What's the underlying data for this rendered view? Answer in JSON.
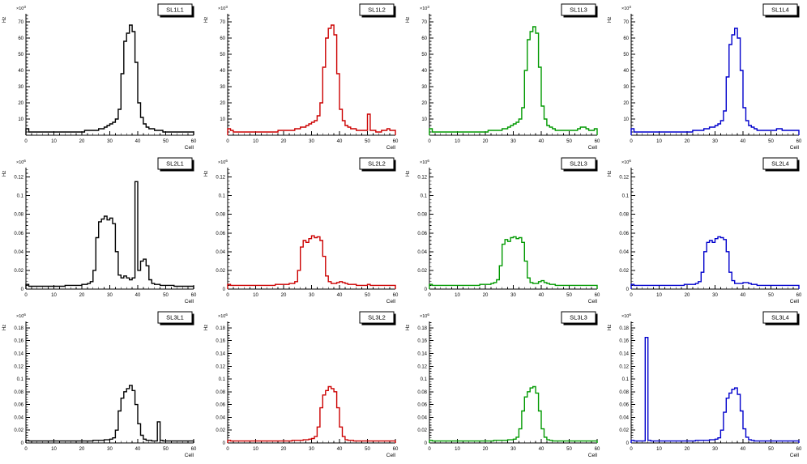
{
  "page": {
    "background": "#ffffff"
  },
  "chart_data": [
    {
      "type": "histogram",
      "title": "SL1L1",
      "color": "#000000",
      "xlabel": "Cell",
      "ylabel": "Hz",
      "exponent": "3",
      "x_range": [
        0,
        60
      ],
      "x_ticks": [
        0,
        10,
        20,
        30,
        40,
        50,
        60
      ],
      "x_tick_labels": [
        "0",
        "10",
        "20",
        "30",
        "40",
        "50",
        "60"
      ],
      "x_minor_step": 2,
      "y_max": 75,
      "y_ticks": [
        10,
        20,
        30,
        40,
        50,
        60,
        70
      ],
      "y_tick_labels": [
        "10",
        "20",
        "30",
        "40",
        "50",
        "60",
        "70"
      ],
      "y_minor_step": 2,
      "values": [
        4,
        2,
        2,
        2,
        2,
        2,
        2,
        2,
        2,
        2,
        2,
        2,
        2,
        2,
        2,
        2,
        2,
        2,
        2,
        2,
        2,
        3,
        3,
        3,
        3,
        3,
        4,
        4,
        5,
        6,
        7,
        8,
        10,
        16,
        38,
        58,
        63,
        68,
        64,
        45,
        20,
        11,
        7,
        5,
        4,
        4,
        3,
        3,
        3,
        2,
        2,
        2,
        2,
        2,
        2,
        2,
        2,
        2,
        2,
        2
      ]
    },
    {
      "type": "histogram",
      "title": "SL1L2",
      "color": "#cc0000",
      "xlabel": "Cell",
      "ylabel": "Hz",
      "exponent": "3",
      "x_range": [
        0,
        60
      ],
      "x_ticks": [
        0,
        10,
        20,
        30,
        40,
        50,
        60
      ],
      "x_tick_labels": [
        "0",
        "10",
        "20",
        "30",
        "40",
        "50",
        "60"
      ],
      "x_minor_step": 2,
      "y_max": 75,
      "y_ticks": [
        10,
        20,
        30,
        40,
        50,
        60,
        70
      ],
      "y_tick_labels": [
        "10",
        "20",
        "30",
        "40",
        "50",
        "60",
        "70"
      ],
      "y_minor_step": 2,
      "values": [
        4,
        3,
        2,
        2,
        2,
        2,
        2,
        2,
        2,
        2,
        2,
        2,
        2,
        2,
        2,
        2,
        2,
        2,
        3,
        3,
        3,
        3,
        3,
        3,
        4,
        4,
        5,
        5,
        6,
        7,
        8,
        9,
        12,
        20,
        42,
        60,
        66,
        68,
        62,
        38,
        16,
        9,
        6,
        5,
        4,
        4,
        3,
        3,
        3,
        3,
        13,
        3,
        3,
        2,
        2,
        3,
        3,
        4,
        3,
        3
      ]
    },
    {
      "type": "histogram",
      "title": "SL1L3",
      "color": "#009900",
      "xlabel": "Cell",
      "ylabel": "Hz",
      "exponent": "3",
      "x_range": [
        0,
        60
      ],
      "x_ticks": [
        0,
        10,
        20,
        30,
        40,
        50,
        60
      ],
      "x_tick_labels": [
        "0",
        "10",
        "20",
        "30",
        "40",
        "50",
        "60"
      ],
      "x_minor_step": 2,
      "y_max": 75,
      "y_ticks": [
        10,
        20,
        30,
        40,
        50,
        60,
        70
      ],
      "y_tick_labels": [
        "10",
        "20",
        "30",
        "40",
        "50",
        "60",
        "70"
      ],
      "y_minor_step": 2,
      "values": [
        4,
        2,
        2,
        2,
        2,
        2,
        2,
        2,
        2,
        2,
        2,
        2,
        2,
        2,
        2,
        2,
        2,
        2,
        2,
        2,
        2,
        3,
        3,
        3,
        3,
        3,
        4,
        4,
        5,
        6,
        7,
        8,
        10,
        17,
        40,
        59,
        64,
        67,
        63,
        42,
        18,
        10,
        6,
        5,
        4,
        3,
        3,
        3,
        3,
        3,
        3,
        3,
        3,
        4,
        5,
        5,
        4,
        3,
        3,
        4
      ]
    },
    {
      "type": "histogram",
      "title": "SL1L4",
      "color": "#0000cc",
      "xlabel": "Cell",
      "ylabel": "Hz",
      "exponent": "3",
      "x_range": [
        0,
        60
      ],
      "x_ticks": [
        0,
        10,
        20,
        30,
        40,
        50,
        60
      ],
      "x_tick_labels": [
        "0",
        "10",
        "20",
        "30",
        "40",
        "50",
        "60"
      ],
      "x_minor_step": 2,
      "y_max": 75,
      "y_ticks": [
        10,
        20,
        30,
        40,
        50,
        60,
        70
      ],
      "y_tick_labels": [
        "10",
        "20",
        "30",
        "40",
        "50",
        "60",
        "70"
      ],
      "y_minor_step": 2,
      "values": [
        4,
        2,
        2,
        2,
        2,
        2,
        2,
        2,
        2,
        2,
        2,
        2,
        2,
        2,
        2,
        2,
        2,
        2,
        2,
        2,
        2,
        2,
        3,
        3,
        3,
        3,
        4,
        4,
        5,
        5,
        6,
        7,
        9,
        15,
        36,
        56,
        62,
        66,
        60,
        40,
        17,
        9,
        6,
        5,
        4,
        3,
        3,
        3,
        3,
        3,
        3,
        3,
        4,
        4,
        3,
        3,
        3,
        3,
        3,
        3
      ]
    },
    {
      "type": "histogram",
      "title": "SL2L1",
      "color": "#000000",
      "xlabel": "Cell",
      "ylabel": "Hz",
      "exponent": "6",
      "x_range": [
        0,
        60
      ],
      "x_ticks": [
        0,
        10,
        20,
        30,
        40,
        50,
        60
      ],
      "x_tick_labels": [
        "0",
        "10",
        "20",
        "30",
        "40",
        "50",
        "60"
      ],
      "x_minor_step": 2,
      "y_max": 0.13,
      "y_ticks": [
        0,
        0.02,
        0.04,
        0.06,
        0.08,
        0.1,
        0.12
      ],
      "y_tick_labels": [
        "0",
        "0.02",
        "0.04",
        "0.06",
        "0.08",
        "0.1",
        "0.12"
      ],
      "y_minor_step": 0.004,
      "values": [
        0.005,
        0.003,
        0.003,
        0.003,
        0.003,
        0.003,
        0.003,
        0.003,
        0.003,
        0.003,
        0.003,
        0.003,
        0.003,
        0.003,
        0.004,
        0.004,
        0.004,
        0.004,
        0.004,
        0.004,
        0.005,
        0.005,
        0.006,
        0.008,
        0.02,
        0.055,
        0.072,
        0.075,
        0.078,
        0.074,
        0.076,
        0.07,
        0.04,
        0.015,
        0.012,
        0.014,
        0.012,
        0.01,
        0.012,
        0.115,
        0.02,
        0.03,
        0.032,
        0.025,
        0.01,
        0.006,
        0.005,
        0.005,
        0.004,
        0.004,
        0.004,
        0.004,
        0.004,
        0.003,
        0.003,
        0.003,
        0.003,
        0.003,
        0.003,
        0.003
      ]
    },
    {
      "type": "histogram",
      "title": "SL2L2",
      "color": "#cc0000",
      "xlabel": "Cell",
      "ylabel": "Hz",
      "exponent": "6",
      "x_range": [
        0,
        60
      ],
      "x_ticks": [
        0,
        10,
        20,
        30,
        40,
        50,
        60
      ],
      "x_tick_labels": [
        "0",
        "10",
        "20",
        "30",
        "40",
        "50",
        "60"
      ],
      "x_minor_step": 2,
      "y_max": 0.13,
      "y_ticks": [
        0,
        0.02,
        0.04,
        0.06,
        0.08,
        0.1,
        0.12
      ],
      "y_tick_labels": [
        "0",
        "0.02",
        "0.04",
        "0.06",
        "0.08",
        "0.1",
        "0.12"
      ],
      "y_minor_step": 0.004,
      "values": [
        0.005,
        0.004,
        0.004,
        0.004,
        0.004,
        0.004,
        0.004,
        0.004,
        0.004,
        0.004,
        0.004,
        0.004,
        0.004,
        0.004,
        0.004,
        0.004,
        0.004,
        0.005,
        0.005,
        0.005,
        0.005,
        0.005,
        0.006,
        0.006,
        0.008,
        0.02,
        0.045,
        0.052,
        0.05,
        0.054,
        0.057,
        0.055,
        0.056,
        0.052,
        0.035,
        0.014,
        0.008,
        0.006,
        0.006,
        0.007,
        0.008,
        0.007,
        0.006,
        0.005,
        0.005,
        0.005,
        0.004,
        0.004,
        0.004,
        0.004,
        0.005,
        0.004,
        0.004,
        0.004,
        0.004,
        0.004,
        0.004,
        0.004,
        0.004,
        0.004
      ]
    },
    {
      "type": "histogram",
      "title": "SL2L3",
      "color": "#009900",
      "xlabel": "Cell",
      "ylabel": "Hz",
      "exponent": "6",
      "x_range": [
        0,
        60
      ],
      "x_ticks": [
        0,
        10,
        20,
        30,
        40,
        50,
        60
      ],
      "x_tick_labels": [
        "0",
        "10",
        "20",
        "30",
        "40",
        "50",
        "60"
      ],
      "x_minor_step": 2,
      "y_max": 0.13,
      "y_ticks": [
        0,
        0.02,
        0.04,
        0.06,
        0.08,
        0.1,
        0.12
      ],
      "y_tick_labels": [
        "0",
        "0.02",
        "0.04",
        "0.06",
        "0.08",
        "0.1",
        "0.12"
      ],
      "y_minor_step": 0.004,
      "values": [
        0.005,
        0.004,
        0.004,
        0.004,
        0.004,
        0.004,
        0.004,
        0.004,
        0.004,
        0.004,
        0.004,
        0.004,
        0.004,
        0.004,
        0.004,
        0.004,
        0.004,
        0.004,
        0.005,
        0.005,
        0.005,
        0.005,
        0.006,
        0.007,
        0.01,
        0.025,
        0.048,
        0.053,
        0.051,
        0.055,
        0.056,
        0.054,
        0.055,
        0.05,
        0.03,
        0.012,
        0.007,
        0.006,
        0.006,
        0.008,
        0.009,
        0.007,
        0.006,
        0.005,
        0.005,
        0.004,
        0.004,
        0.004,
        0.004,
        0.004,
        0.004,
        0.004,
        0.004,
        0.004,
        0.004,
        0.004,
        0.004,
        0.004,
        0.004,
        0.004
      ]
    },
    {
      "type": "histogram",
      "title": "SL2L4",
      "color": "#0000cc",
      "xlabel": "Cell",
      "ylabel": "Hz",
      "exponent": "6",
      "x_range": [
        0,
        60
      ],
      "x_ticks": [
        0,
        10,
        20,
        30,
        40,
        50,
        60
      ],
      "x_tick_labels": [
        "0",
        "10",
        "20",
        "30",
        "40",
        "50",
        "60"
      ],
      "x_minor_step": 2,
      "y_max": 0.13,
      "y_ticks": [
        0,
        0.02,
        0.04,
        0.06,
        0.08,
        0.1,
        0.12
      ],
      "y_tick_labels": [
        "0",
        "0.02",
        "0.04",
        "0.06",
        "0.08",
        "0.1",
        "0.12"
      ],
      "y_minor_step": 0.004,
      "values": [
        0.005,
        0.004,
        0.004,
        0.004,
        0.004,
        0.004,
        0.004,
        0.004,
        0.004,
        0.004,
        0.004,
        0.004,
        0.004,
        0.004,
        0.004,
        0.004,
        0.004,
        0.004,
        0.004,
        0.005,
        0.005,
        0.005,
        0.005,
        0.006,
        0.008,
        0.018,
        0.04,
        0.05,
        0.052,
        0.05,
        0.054,
        0.056,
        0.055,
        0.053,
        0.04,
        0.018,
        0.009,
        0.006,
        0.006,
        0.006,
        0.007,
        0.007,
        0.006,
        0.005,
        0.005,
        0.004,
        0.004,
        0.004,
        0.004,
        0.004,
        0.004,
        0.004,
        0.004,
        0.004,
        0.004,
        0.004,
        0.004,
        0.004,
        0.004,
        0.004
      ]
    },
    {
      "type": "histogram",
      "title": "SL3L1",
      "color": "#000000",
      "xlabel": "Cell",
      "ylabel": "Hz",
      "exponent": "6",
      "x_range": [
        0,
        60
      ],
      "x_ticks": [
        0,
        10,
        20,
        30,
        40,
        50,
        60
      ],
      "x_tick_labels": [
        "0",
        "10",
        "20",
        "30",
        "40",
        "50",
        "60"
      ],
      "x_minor_step": 2,
      "y_max": 0.19,
      "y_ticks": [
        0,
        0.02,
        0.04,
        0.06,
        0.08,
        0.1,
        0.12,
        0.14,
        0.16,
        0.18
      ],
      "y_tick_labels": [
        "0",
        "0.02",
        "0.04",
        "0.06",
        "0.08",
        "0.1",
        "0.12",
        "0.14",
        "0.16",
        "0.18"
      ],
      "y_minor_step": 0.004,
      "values": [
        0.004,
        0.003,
        0.003,
        0.003,
        0.003,
        0.003,
        0.003,
        0.003,
        0.003,
        0.003,
        0.003,
        0.003,
        0.003,
        0.003,
        0.003,
        0.003,
        0.003,
        0.003,
        0.003,
        0.003,
        0.003,
        0.003,
        0.003,
        0.003,
        0.004,
        0.004,
        0.004,
        0.004,
        0.005,
        0.005,
        0.006,
        0.008,
        0.02,
        0.05,
        0.07,
        0.08,
        0.085,
        0.09,
        0.082,
        0.06,
        0.03,
        0.012,
        0.006,
        0.004,
        0.004,
        0.003,
        0.003,
        0.033,
        0.004,
        0.003,
        0.003,
        0.003,
        0.003,
        0.003,
        0.003,
        0.003,
        0.003,
        0.003,
        0.003,
        0.003
      ]
    },
    {
      "type": "histogram",
      "title": "SL3L2",
      "color": "#cc0000",
      "xlabel": "Cell",
      "ylabel": "Hz",
      "exponent": "6",
      "x_range": [
        0,
        60
      ],
      "x_ticks": [
        0,
        10,
        20,
        30,
        40,
        50,
        60
      ],
      "x_tick_labels": [
        "0",
        "10",
        "20",
        "30",
        "40",
        "50",
        "60"
      ],
      "x_minor_step": 2,
      "y_max": 0.19,
      "y_ticks": [
        0,
        0.02,
        0.04,
        0.06,
        0.08,
        0.1,
        0.12,
        0.14,
        0.16,
        0.18
      ],
      "y_tick_labels": [
        "0",
        "0.02",
        "0.04",
        "0.06",
        "0.08",
        "0.1",
        "0.12",
        "0.14",
        "0.16",
        "0.18"
      ],
      "y_minor_step": 0.004,
      "values": [
        0.004,
        0.003,
        0.003,
        0.003,
        0.003,
        0.003,
        0.003,
        0.003,
        0.003,
        0.003,
        0.003,
        0.003,
        0.003,
        0.003,
        0.003,
        0.003,
        0.003,
        0.003,
        0.003,
        0.003,
        0.003,
        0.003,
        0.003,
        0.004,
        0.004,
        0.004,
        0.004,
        0.005,
        0.005,
        0.006,
        0.007,
        0.01,
        0.025,
        0.055,
        0.075,
        0.082,
        0.088,
        0.085,
        0.08,
        0.055,
        0.025,
        0.01,
        0.005,
        0.004,
        0.004,
        0.003,
        0.003,
        0.003,
        0.003,
        0.003,
        0.003,
        0.003,
        0.003,
        0.003,
        0.003,
        0.003,
        0.003,
        0.003,
        0.003,
        0.003
      ]
    },
    {
      "type": "histogram",
      "title": "SL3L3",
      "color": "#009900",
      "xlabel": "Cell",
      "ylabel": "Hz",
      "exponent": "6",
      "x_range": [
        0,
        60
      ],
      "x_ticks": [
        0,
        10,
        20,
        30,
        40,
        50,
        60
      ],
      "x_tick_labels": [
        "0",
        "10",
        "20",
        "30",
        "40",
        "50",
        "60"
      ],
      "x_minor_step": 2,
      "y_max": 0.19,
      "y_ticks": [
        0,
        0.02,
        0.04,
        0.06,
        0.08,
        0.1,
        0.12,
        0.14,
        0.16,
        0.18
      ],
      "y_tick_labels": [
        "0",
        "0.02",
        "0.04",
        "0.06",
        "0.08",
        "0.1",
        "0.12",
        "0.14",
        "0.16",
        "0.18"
      ],
      "y_minor_step": 0.004,
      "values": [
        0.004,
        0.003,
        0.003,
        0.003,
        0.003,
        0.003,
        0.003,
        0.003,
        0.003,
        0.003,
        0.003,
        0.003,
        0.003,
        0.003,
        0.003,
        0.003,
        0.003,
        0.003,
        0.003,
        0.003,
        0.003,
        0.003,
        0.003,
        0.004,
        0.004,
        0.004,
        0.004,
        0.004,
        0.005,
        0.005,
        0.006,
        0.009,
        0.022,
        0.05,
        0.072,
        0.08,
        0.086,
        0.088,
        0.078,
        0.05,
        0.022,
        0.009,
        0.005,
        0.004,
        0.003,
        0.003,
        0.003,
        0.003,
        0.003,
        0.003,
        0.003,
        0.003,
        0.003,
        0.003,
        0.003,
        0.003,
        0.003,
        0.003,
        0.003,
        0.003
      ]
    },
    {
      "type": "histogram",
      "title": "SL3L4",
      "color": "#0000cc",
      "xlabel": "Cell",
      "ylabel": "Hz",
      "exponent": "6",
      "x_range": [
        0,
        60
      ],
      "x_ticks": [
        0,
        10,
        20,
        30,
        40,
        50,
        60
      ],
      "x_tick_labels": [
        "0",
        "10",
        "20",
        "30",
        "40",
        "50",
        "60"
      ],
      "x_minor_step": 2,
      "y_max": 0.19,
      "y_ticks": [
        0,
        0.02,
        0.04,
        0.06,
        0.08,
        0.1,
        0.12,
        0.14,
        0.16,
        0.18
      ],
      "y_tick_labels": [
        "0",
        "0.02",
        "0.04",
        "0.06",
        "0.08",
        "0.1",
        "0.12",
        "0.14",
        "0.16",
        "0.18"
      ],
      "y_minor_step": 0.004,
      "values": [
        0.004,
        0.003,
        0.003,
        0.003,
        0.003,
        0.165,
        0.004,
        0.003,
        0.003,
        0.003,
        0.003,
        0.003,
        0.003,
        0.003,
        0.003,
        0.003,
        0.003,
        0.003,
        0.003,
        0.003,
        0.003,
        0.003,
        0.003,
        0.004,
        0.004,
        0.004,
        0.004,
        0.004,
        0.005,
        0.005,
        0.006,
        0.008,
        0.02,
        0.048,
        0.07,
        0.078,
        0.084,
        0.086,
        0.076,
        0.05,
        0.022,
        0.009,
        0.005,
        0.004,
        0.003,
        0.003,
        0.003,
        0.003,
        0.003,
        0.003,
        0.003,
        0.003,
        0.003,
        0.003,
        0.003,
        0.003,
        0.003,
        0.003,
        0.003,
        0.003
      ]
    }
  ]
}
